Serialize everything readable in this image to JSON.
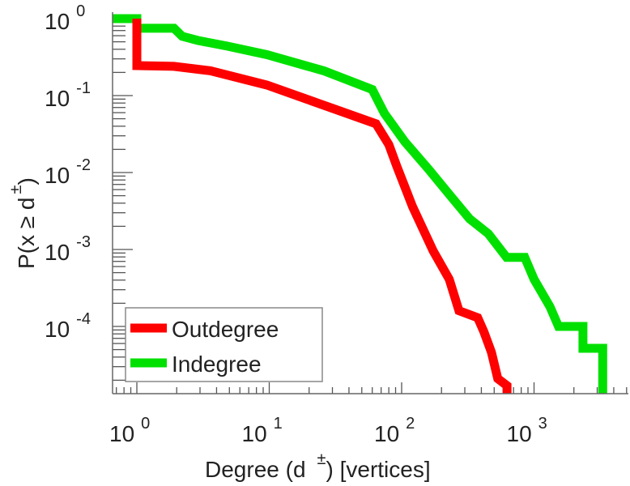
{
  "chart_data": {
    "type": "line",
    "title": "",
    "xlabel": "Degree (d ±) [vertices]",
    "ylabel": "P(x ≥ d±)",
    "xscale": "log",
    "yscale": "log",
    "xlim": [
      0.66,
      5000
    ],
    "ylim": [
      1.3e-05,
      1.2
    ],
    "x_ticks": [
      {
        "value": 1,
        "base": "10",
        "exp": "0"
      },
      {
        "value": 10,
        "base": "10",
        "exp": "1"
      },
      {
        "value": 100,
        "base": "10",
        "exp": "2"
      },
      {
        "value": 1000,
        "base": "10",
        "exp": "3"
      }
    ],
    "y_ticks": [
      {
        "value": 1,
        "base": "10",
        "exp": "0"
      },
      {
        "value": 0.1,
        "base": "10",
        "exp": "-1"
      },
      {
        "value": 0.01,
        "base": "10",
        "exp": "-2"
      },
      {
        "value": 0.001,
        "base": "10",
        "exp": "-3"
      },
      {
        "value": 0.0001,
        "base": "10",
        "exp": "-4"
      }
    ],
    "xlabel_parts": {
      "main": "Degree (d",
      "sup": "±",
      "tail": ") [vertices]"
    },
    "ylabel_parts": {
      "main": "P(x ≥ d",
      "sup": "±",
      "tail": ")"
    },
    "grid": false,
    "legend_position": "bottom-left",
    "series": [
      {
        "name": "Outdegree",
        "color": "#ff0000",
        "step": true,
        "x": [
          1,
          1,
          1.9,
          3.6,
          9.6,
          25.8,
          64,
          80,
          92,
          121,
          173,
          229,
          271,
          375,
          418,
          477,
          532,
          625,
          625
        ],
        "y": [
          1.0,
          0.245,
          0.24,
          0.21,
          0.137,
          0.075,
          0.043,
          0.023,
          0.012,
          0.0036,
          0.00096,
          0.00041,
          0.00016,
          0.00013,
          8.5e-05,
          4.6e-05,
          2.1e-05,
          1.7e-05,
          1.3e-05
        ]
      },
      {
        "name": "Indegree",
        "color": "#00e000",
        "step": true,
        "x": [
          0.66,
          1,
          1,
          1.91,
          2.2,
          2.9,
          4.8,
          9.6,
          25.8,
          60,
          74,
          106,
          162,
          229,
          326,
          452,
          620,
          850,
          1000,
          1320,
          1530,
          2340,
          2340,
          3300,
          3300
        ],
        "y": [
          1.0,
          1.0,
          0.75,
          0.75,
          0.59,
          0.52,
          0.44,
          0.34,
          0.21,
          0.12,
          0.059,
          0.025,
          0.0107,
          0.0052,
          0.0025,
          0.0016,
          0.00079,
          0.00079,
          0.00041,
          0.00018,
          0.0001,
          0.0001,
          5.2e-05,
          5.2e-05,
          1.3e-05
        ]
      }
    ]
  }
}
